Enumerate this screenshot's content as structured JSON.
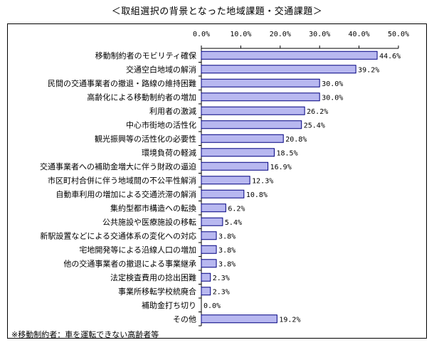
{
  "title": "＜取組選択の背景となった地域課題・交通課題＞",
  "footnote": "※移動制約者：車を運転できない高齢者等",
  "chart_data": {
    "type": "bar",
    "orientation": "horizontal",
    "categories": [
      "移動制約者のモビリティ確保",
      "交通空白地域の解消",
      "民間の交通事業者の撤退・路線の維持困難",
      "高齢化による移動制約者の増加",
      "利用者の激減",
      "中心市街地の活性化",
      "観光振興等の活性化の必要性",
      "環境負荷の軽減",
      "交通事業者への補助金増大に伴う財政の逼迫",
      "市区町村合併に伴う地域間の不公平性解消",
      "自動車利用の増加による交通渋滞の解消",
      "集約型都市構造への転換",
      "公共施設や医療施設の移転",
      "新駅設置などによる交通体系の変化への対応",
      "宅地開発等による沿線人口の増加",
      "他の交通事業者の撤退による事業継承",
      "法定検査費用の捻出困難",
      "事業所移転学校統廃合",
      "補助金打ち切り",
      "その他"
    ],
    "values": [
      44.6,
      39.2,
      30.0,
      30.0,
      26.2,
      25.4,
      20.8,
      18.5,
      16.9,
      12.3,
      10.8,
      6.2,
      5.4,
      3.8,
      3.8,
      3.8,
      2.3,
      2.3,
      0.0,
      19.2
    ],
    "value_labels": [
      "44.6%",
      "39.2%",
      "30.0%",
      "30.0%",
      "26.2%",
      "25.4%",
      "20.8%",
      "18.5%",
      "16.9%",
      "12.3%",
      "10.8%",
      "6.2%",
      "5.4%",
      "3.8%",
      "3.8%",
      "3.8%",
      "2.3%",
      "2.3%",
      "0.0%",
      "19.2%"
    ],
    "xlim": [
      0,
      50
    ],
    "ticks": [
      0,
      10,
      20,
      30,
      40,
      50
    ],
    "tick_labels": [
      "0.0%",
      "10.0%",
      "20.0%",
      "30.0%",
      "40.0%",
      "50.0%"
    ],
    "grid": false,
    "legend": "none",
    "bar_color": "#b8b8f0",
    "bar_border": "#000080"
  }
}
